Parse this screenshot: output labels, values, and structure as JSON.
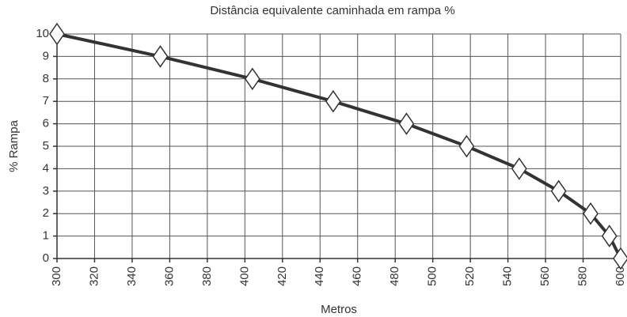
{
  "chart_data": {
    "type": "line",
    "title": "Distância equivalente caminhada em rampa %",
    "x_label": "Metros",
    "y_label": "% Rampa",
    "x": [
      300,
      355,
      404,
      447,
      486,
      518,
      546,
      567,
      584,
      594,
      600
    ],
    "series": [
      {
        "color": "#333333",
        "values": [
          10,
          9,
          8,
          7,
          6,
          5,
          4,
          3,
          2,
          1,
          0
        ]
      }
    ],
    "xlim": [
      300,
      600
    ],
    "xticks": [
      300,
      320,
      340,
      360,
      380,
      400,
      420,
      440,
      460,
      480,
      500,
      520,
      540,
      560,
      580,
      600
    ],
    "ylim": [
      0,
      10
    ],
    "yticks": [
      0,
      1,
      2,
      3,
      4,
      5,
      6,
      7,
      8,
      9,
      10
    ],
    "grid": true,
    "markers": "diamond"
  }
}
